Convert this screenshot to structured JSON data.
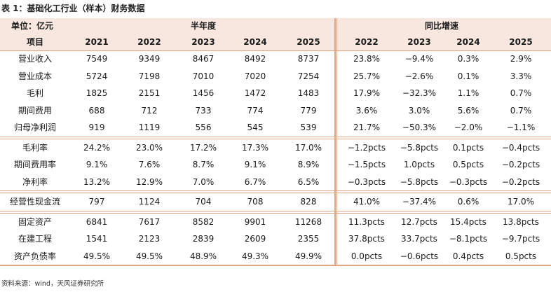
{
  "caption": "表 1：基础化工行业（样本）财务数据",
  "source": "资料来源：wind，天风证券研究所",
  "header": {
    "unit_label": "单位：亿元",
    "group_half_year": "半年度",
    "group_yoy": "同比增速",
    "item_label": "项目",
    "years": [
      "2021",
      "2022",
      "2023",
      "2024",
      "2025"
    ],
    "growth_years": [
      "2022",
      "2023",
      "2024",
      "2025"
    ]
  },
  "sections": [
    {
      "rows": [
        {
          "label": "营业收入",
          "values": [
            "7549",
            "9349",
            "8467",
            "8492",
            "8737"
          ],
          "growth": [
            "23.8%",
            "−9.4%",
            "0.3%",
            "2.9%"
          ]
        },
        {
          "label": "营业成本",
          "values": [
            "5724",
            "7198",
            "7010",
            "7020",
            "7254"
          ],
          "growth": [
            "25.7%",
            "−2.6%",
            "0.1%",
            "3.3%"
          ]
        },
        {
          "label": "毛利",
          "values": [
            "1825",
            "2151",
            "1456",
            "1472",
            "1483"
          ],
          "growth": [
            "17.9%",
            "−32.3%",
            "1.1%",
            "0.7%"
          ]
        },
        {
          "label": "期间费用",
          "values": [
            "688",
            "712",
            "733",
            "774",
            "779"
          ],
          "growth": [
            "3.6%",
            "3.0%",
            "5.6%",
            "0.7%"
          ]
        },
        {
          "label": "归母净利润",
          "values": [
            "919",
            "1119",
            "556",
            "545",
            "539"
          ],
          "growth": [
            "21.7%",
            "−50.3%",
            "−2.0%",
            "−1.1%"
          ]
        }
      ]
    },
    {
      "rows": [
        {
          "label": "毛利率",
          "values": [
            "24.2%",
            "23.0%",
            "17.2%",
            "17.3%",
            "17.0%"
          ],
          "growth": [
            "−1.2pcts",
            "−5.8pcts",
            "0.1pcts",
            "−0.4pcts"
          ]
        },
        {
          "label": "期间费用率",
          "values": [
            "9.1%",
            "7.6%",
            "8.7%",
            "9.1%",
            "8.9%"
          ],
          "growth": [
            "−1.5pcts",
            "1.0pcts",
            "0.5pcts",
            "−0.2pcts"
          ]
        },
        {
          "label": "净利率",
          "values": [
            "13.2%",
            "12.9%",
            "7.0%",
            "6.7%",
            "6.5%"
          ],
          "growth": [
            "−0.3pcts",
            "−5.8pcts",
            "−0.3pcts",
            "−0.2pcts"
          ]
        }
      ]
    },
    {
      "rows": [
        {
          "label": "经营性现金流",
          "values": [
            "797",
            "1124",
            "704",
            "708",
            "828"
          ],
          "growth": [
            "41.0%",
            "−37.4%",
            "0.6%",
            "17.0%"
          ]
        }
      ]
    },
    {
      "rows": [
        {
          "label": "固定资产",
          "values": [
            "6841",
            "7617",
            "8582",
            "9901",
            "11268"
          ],
          "growth": [
            "11.3pcts",
            "12.7pcts",
            "15.4pcts",
            "13.8pcts"
          ]
        },
        {
          "label": "在建工程",
          "values": [
            "1541",
            "2123",
            "2839",
            "2609",
            "2355"
          ],
          "growth": [
            "37.8pcts",
            "33.7pcts",
            "−8.1pcts",
            "−9.7pcts"
          ]
        },
        {
          "label": "资产负债率",
          "values": [
            "49.5%",
            "49.5%",
            "48.9%",
            "49.3%",
            "49.9%"
          ],
          "growth": [
            "0.0pcts",
            "−0.6pcts",
            "0.4pcts",
            "0.5pcts"
          ]
        }
      ]
    }
  ],
  "colors": {
    "header_bg": "#f7e7df",
    "rule": "#e0a585",
    "text": "#1a1a1a"
  }
}
